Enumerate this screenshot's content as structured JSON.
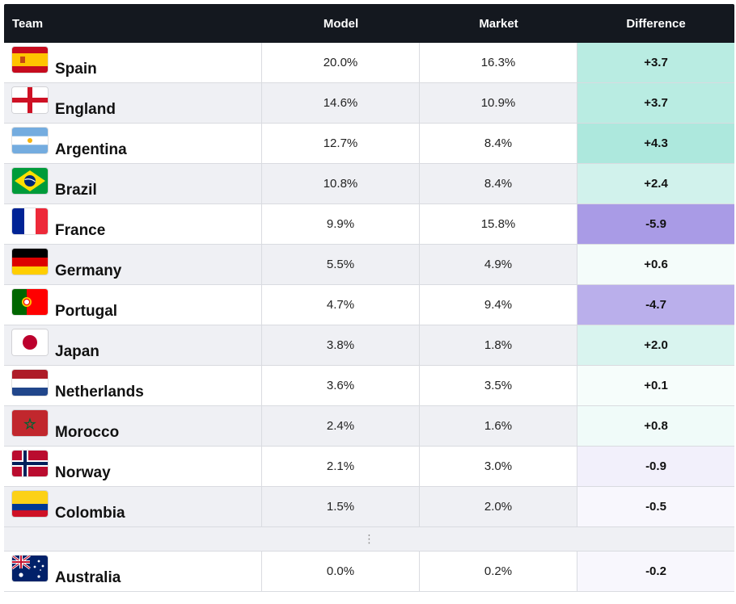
{
  "chart_data": {
    "type": "table",
    "columns": [
      "Team",
      "Model",
      "Market",
      "Difference"
    ],
    "rows": [
      {
        "team": "Spain",
        "flag": "flag-spain",
        "model": "20.0%",
        "market": "16.3%",
        "difference": "+3.7",
        "diff_value": 3.7
      },
      {
        "team": "England",
        "flag": "flag-england",
        "model": "14.6%",
        "market": "10.9%",
        "difference": "+3.7",
        "diff_value": 3.7
      },
      {
        "team": "Argentina",
        "flag": "flag-argentina",
        "model": "12.7%",
        "market": "8.4%",
        "difference": "+4.3",
        "diff_value": 4.3
      },
      {
        "team": "Brazil",
        "flag": "flag-brazil",
        "model": "10.8%",
        "market": "8.4%",
        "difference": "+2.4",
        "diff_value": 2.4
      },
      {
        "team": "France",
        "flag": "flag-france",
        "model": "9.9%",
        "market": "15.8%",
        "difference": "-5.9",
        "diff_value": -5.9
      },
      {
        "team": "Germany",
        "flag": "flag-germany",
        "model": "5.5%",
        "market": "4.9%",
        "difference": "+0.6",
        "diff_value": 0.6
      },
      {
        "team": "Portugal",
        "flag": "flag-portugal",
        "model": "4.7%",
        "market": "9.4%",
        "difference": "-4.7",
        "diff_value": -4.7
      },
      {
        "team": "Japan",
        "flag": "flag-japan",
        "model": "3.8%",
        "market": "1.8%",
        "difference": "+2.0",
        "diff_value": 2.0
      },
      {
        "team": "Netherlands",
        "flag": "flag-netherlands",
        "model": "3.6%",
        "market": "3.5%",
        "difference": "+0.1",
        "diff_value": 0.1
      },
      {
        "team": "Morocco",
        "flag": "flag-morocco",
        "model": "2.4%",
        "market": "1.6%",
        "difference": "+0.8",
        "diff_value": 0.8
      },
      {
        "team": "Norway",
        "flag": "flag-norway",
        "model": "2.1%",
        "market": "3.0%",
        "difference": "-0.9",
        "diff_value": -0.9
      },
      {
        "team": "Colombia",
        "flag": "flag-colombia",
        "model": "1.5%",
        "market": "2.0%",
        "difference": "-0.5",
        "diff_value": -0.5
      }
    ],
    "ellipsis": "⋮",
    "tail_rows": [
      {
        "team": "Australia",
        "flag": "flag-australia",
        "model": "0.0%",
        "market": "0.2%",
        "difference": "-0.2",
        "diff_value": -0.2
      }
    ],
    "colors": {
      "positive": "#8fe0d0",
      "negative": "#a99be6",
      "header_bg": "#14181f"
    }
  }
}
